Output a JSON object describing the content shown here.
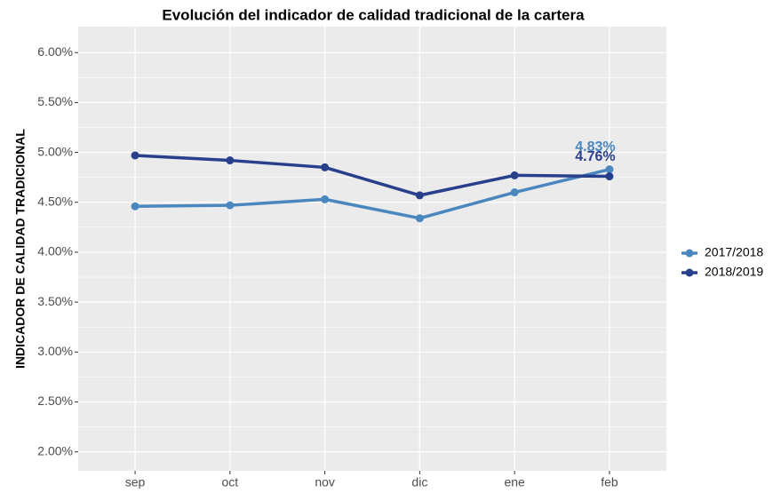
{
  "chart_data": {
    "type": "line",
    "title": "Evolución del indicador de calidad tradicional de la cartera",
    "y_label": "INDICADOR DE CALIDAD TRADICIONAL",
    "categories": [
      "sep",
      "oct",
      "nov",
      "dic",
      "ene",
      "feb"
    ],
    "series": [
      {
        "name": "2017/2018",
        "color": "#4a87bf",
        "values": [
          4.46,
          4.47,
          4.53,
          4.34,
          4.6,
          4.83
        ],
        "value_labels": [
          null,
          null,
          null,
          null,
          null,
          "4.83%"
        ]
      },
      {
        "name": "2018/2019",
        "color": "#283f8b",
        "values": [
          4.97,
          4.92,
          4.85,
          4.57,
          4.77,
          4.76
        ],
        "value_labels": [
          null,
          null,
          null,
          null,
          null,
          "4.76%"
        ]
      }
    ],
    "ylim": [
      1.81,
      6.26
    ],
    "yticks": [
      {
        "value": 2,
        "label": "2.00%"
      },
      {
        "value": 2.5,
        "label": "2.50%"
      },
      {
        "value": 3,
        "label": "3.00%"
      },
      {
        "value": 3.5,
        "label": "3.50%"
      },
      {
        "value": 4,
        "label": "4.00%"
      },
      {
        "value": 4.5,
        "label": "4.50%"
      },
      {
        "value": 5,
        "label": "5.00%"
      },
      {
        "value": 5.5,
        "label": "5.50%"
      },
      {
        "value": 6,
        "label": "6.00%"
      }
    ],
    "grid": true
  }
}
